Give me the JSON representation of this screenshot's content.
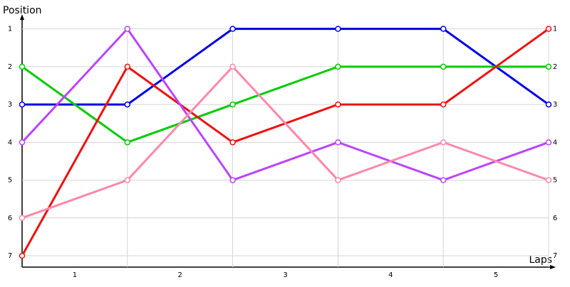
{
  "chart_data": {
    "type": "line",
    "x_label": "Laps",
    "y_label": "Position",
    "x": [
      0,
      1,
      2,
      3,
      4,
      5
    ],
    "xlim": [
      0,
      5
    ],
    "xticks": [
      {
        "value": 0.5,
        "label": "1"
      },
      {
        "value": 1.5,
        "label": "2"
      },
      {
        "value": 2.5,
        "label": "3"
      },
      {
        "value": 3.5,
        "label": "4"
      },
      {
        "value": 4.5,
        "label": "5"
      }
    ],
    "ylim": [
      7.3,
      0.65
    ],
    "yticks": [
      1,
      2,
      3,
      4,
      5,
      6,
      7
    ],
    "grid": true,
    "series": [
      {
        "color": "#0000e6",
        "values": [
          3,
          3,
          1,
          1,
          1,
          3
        ]
      },
      {
        "color": "#00cc00",
        "values": [
          2,
          4,
          3,
          2,
          2,
          2
        ]
      },
      {
        "color": "#ee1111",
        "values": [
          7,
          2,
          4,
          3,
          3,
          1
        ]
      },
      {
        "color": "#bb44ff",
        "values": [
          4,
          1,
          5,
          4,
          5,
          4
        ]
      },
      {
        "color": "#ff88aa",
        "values": [
          6,
          5,
          2,
          5,
          4,
          5
        ]
      }
    ]
  }
}
